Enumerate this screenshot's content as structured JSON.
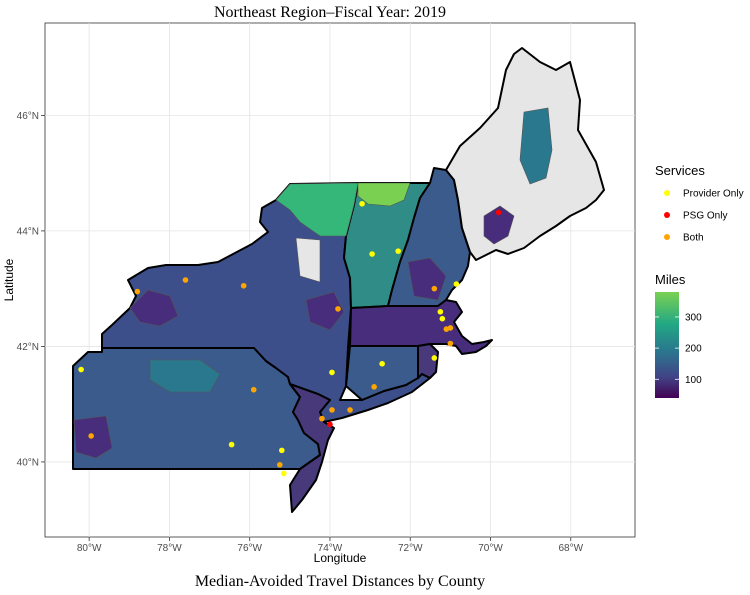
{
  "title": "Northeast Region–Fiscal Year: 2019",
  "caption": "Median-Avoided Travel Distances by County",
  "axes": {
    "xlabel": "Longitude",
    "ylabel": "Latitude",
    "x_ticks": [
      "80°W",
      "78°W",
      "76°W",
      "74°W",
      "72°W",
      "70°W",
      "68°W"
    ],
    "y_ticks": [
      "40°N",
      "42°N",
      "44°N",
      "46°N"
    ]
  },
  "legend": {
    "services_title": "Services",
    "services": [
      {
        "label": "Provider Only",
        "color": "#ffff00"
      },
      {
        "label": "PSG Only",
        "color": "#ff0000"
      },
      {
        "label": "Both",
        "color": "#ffa500"
      }
    ],
    "miles_title": "Miles",
    "miles_ticks": [
      "300",
      "200",
      "100"
    ]
  },
  "colors": {
    "no_data": "#e6e6e6",
    "scale_low": "#440154",
    "scale_high": "#7ad151"
  },
  "chart_data": {
    "type": "map",
    "xlim": [
      -81.1,
      -66.4
    ],
    "ylim": [
      38.7,
      47.6
    ],
    "x_ticks": [
      -80,
      -78,
      -76,
      -74,
      -72,
      -70,
      -68
    ],
    "y_ticks": [
      40,
      42,
      44,
      46
    ],
    "color_scale": {
      "min": 40,
      "max": 380,
      "ticks": [
        100,
        200,
        300
      ]
    },
    "points": [
      {
        "lon": -80.2,
        "lat": 41.6,
        "service": "Provider Only"
      },
      {
        "lon": -79.95,
        "lat": 40.45,
        "service": "Both"
      },
      {
        "lon": -78.8,
        "lat": 42.95,
        "service": "Both"
      },
      {
        "lon": -77.6,
        "lat": 43.15,
        "service": "Both"
      },
      {
        "lon": -76.15,
        "lat": 43.05,
        "service": "Both"
      },
      {
        "lon": -75.9,
        "lat": 41.25,
        "service": "Both"
      },
      {
        "lon": -76.45,
        "lat": 40.3,
        "service": "Provider Only"
      },
      {
        "lon": -75.2,
        "lat": 40.2,
        "service": "Provider Only"
      },
      {
        "lon": -75.25,
        "lat": 39.95,
        "service": "Both"
      },
      {
        "lon": -75.15,
        "lat": 39.8,
        "service": "Provider Only"
      },
      {
        "lon": -73.8,
        "lat": 42.65,
        "service": "Both"
      },
      {
        "lon": -73.95,
        "lat": 41.55,
        "service": "Provider Only"
      },
      {
        "lon": -74.2,
        "lat": 40.75,
        "service": "Both"
      },
      {
        "lon": -73.95,
        "lat": 40.9,
        "service": "Both"
      },
      {
        "lon": -74.0,
        "lat": 40.65,
        "service": "PSG Only"
      },
      {
        "lon": -73.5,
        "lat": 40.9,
        "service": "Both"
      },
      {
        "lon": -72.9,
        "lat": 41.3,
        "service": "Both"
      },
      {
        "lon": -72.7,
        "lat": 41.7,
        "service": "Provider Only"
      },
      {
        "lon": -73.2,
        "lat": 44.47,
        "service": "Provider Only"
      },
      {
        "lon": -72.95,
        "lat": 43.6,
        "service": "Provider Only"
      },
      {
        "lon": -72.3,
        "lat": 43.65,
        "service": "Provider Only"
      },
      {
        "lon": -71.4,
        "lat": 43.0,
        "service": "Both"
      },
      {
        "lon": -70.85,
        "lat": 43.08,
        "service": "Provider Only"
      },
      {
        "lon": -71.25,
        "lat": 42.6,
        "service": "Provider Only"
      },
      {
        "lon": -71.2,
        "lat": 42.48,
        "service": "Provider Only"
      },
      {
        "lon": -71.1,
        "lat": 42.3,
        "service": "Both"
      },
      {
        "lon": -71.0,
        "lat": 42.32,
        "service": "Both"
      },
      {
        "lon": -71.0,
        "lat": 42.05,
        "service": "Both"
      },
      {
        "lon": -71.4,
        "lat": 41.8,
        "service": "Provider Only"
      },
      {
        "lon": -69.8,
        "lat": 44.32,
        "service": "PSG Only"
      }
    ]
  }
}
